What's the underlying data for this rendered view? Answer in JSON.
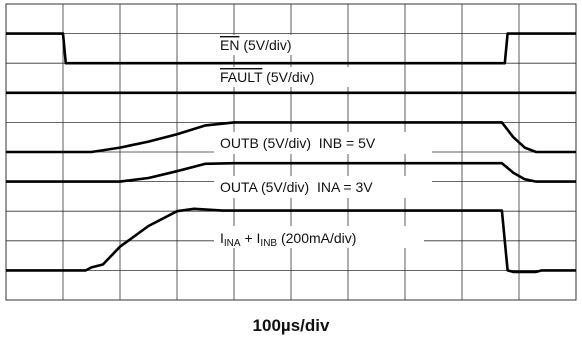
{
  "chart_data": {
    "type": "line",
    "xlabel": "100µs/div",
    "grid": true,
    "x_divisions": 10,
    "y_divisions": 10,
    "x_unit": "div",
    "series": [
      {
        "label": "EN (5V/div)",
        "label_overline": "EN",
        "label_rest": " (5V/div)",
        "baseline_div": 8.0,
        "points": [
          [
            0,
            9.0
          ],
          [
            1.0,
            9.0
          ],
          [
            1.05,
            8.0
          ],
          [
            8.75,
            8.0
          ],
          [
            8.8,
            9.0
          ],
          [
            10,
            9.0
          ]
        ]
      },
      {
        "label": "FAULT (5V/div)",
        "label_overline": "FAULT",
        "label_rest": " (5V/div)",
        "baseline_div": 7.0,
        "points": [
          [
            0,
            7.0
          ],
          [
            10,
            7.0
          ]
        ]
      },
      {
        "label": "OUTB (5V/div) INB = 5V",
        "label_text": "OUTB (5V/div)  INB = 5V",
        "baseline_div": 5.0,
        "points": [
          [
            0,
            5.0
          ],
          [
            1.5,
            5.0
          ],
          [
            2.0,
            5.15
          ],
          [
            2.5,
            5.35
          ],
          [
            3.0,
            5.6
          ],
          [
            3.5,
            5.9
          ],
          [
            4.0,
            6.0
          ],
          [
            8.7,
            6.0
          ],
          [
            8.9,
            5.5
          ],
          [
            9.1,
            5.15
          ],
          [
            9.3,
            5.0
          ],
          [
            10,
            5.0
          ]
        ]
      },
      {
        "label": "OUTA (5V/div) INA = 3V",
        "label_text": "OUTA (5V/div)  INA = 3V",
        "baseline_div": 4.0,
        "points": [
          [
            0,
            4.0
          ],
          [
            2.0,
            4.0
          ],
          [
            2.5,
            4.12
          ],
          [
            3.0,
            4.35
          ],
          [
            3.5,
            4.6
          ],
          [
            4.0,
            4.62
          ],
          [
            8.7,
            4.62
          ],
          [
            8.9,
            4.3
          ],
          [
            9.1,
            4.08
          ],
          [
            9.3,
            4.0
          ],
          [
            10,
            4.0
          ]
        ]
      },
      {
        "label": "IINA + IINB (200mA/div)",
        "label_parts": [
          "I",
          "INA",
          " + I",
          "INB",
          " (200mA/div)"
        ],
        "baseline_div": 1.0,
        "points": [
          [
            0,
            1.0
          ],
          [
            1.4,
            1.0
          ],
          [
            1.5,
            1.1
          ],
          [
            1.7,
            1.2
          ],
          [
            2.0,
            1.8
          ],
          [
            2.5,
            2.5
          ],
          [
            3.0,
            3.0
          ],
          [
            3.3,
            3.08
          ],
          [
            3.8,
            3.02
          ],
          [
            8.7,
            3.02
          ],
          [
            8.8,
            1.0
          ],
          [
            8.9,
            0.95
          ],
          [
            9.3,
            0.95
          ],
          [
            9.4,
            1.0
          ],
          [
            10,
            1.0
          ]
        ]
      }
    ]
  }
}
